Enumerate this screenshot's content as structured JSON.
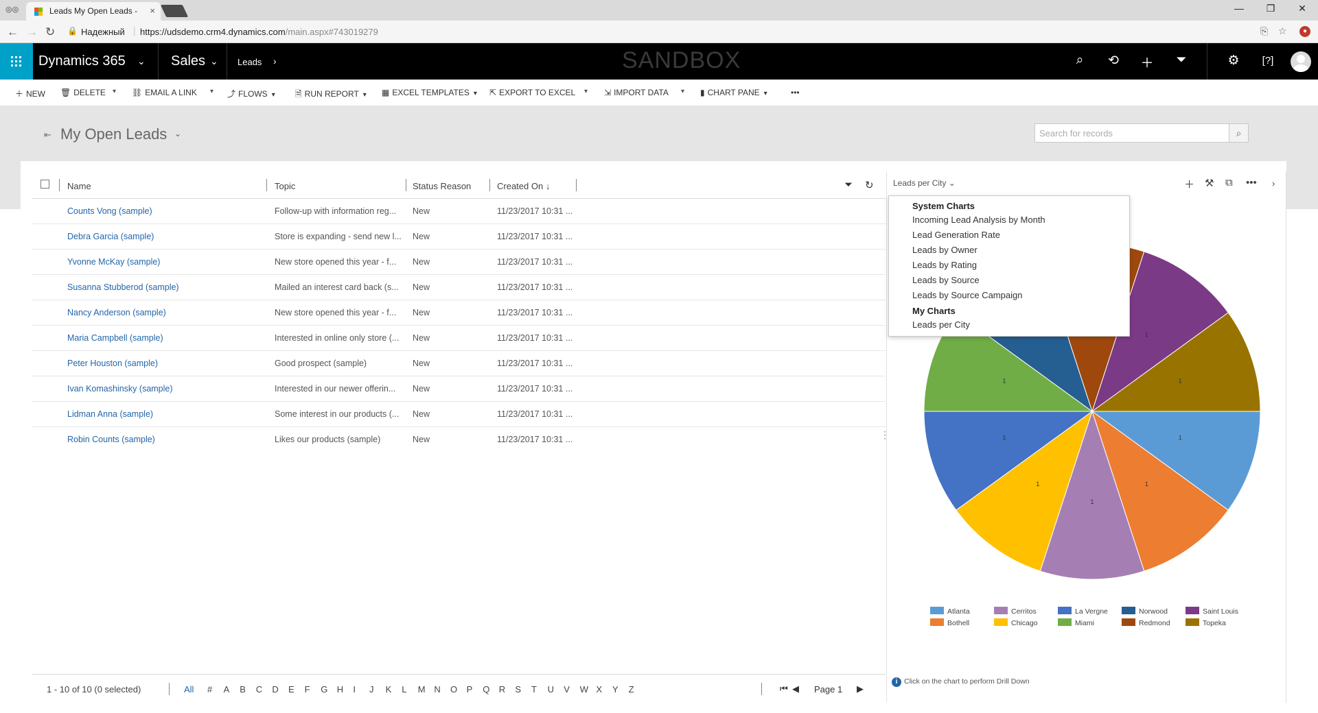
{
  "browser": {
    "tab_title": "Leads My Open Leads - ",
    "tab_close": "×",
    "secure_label": "Надежный",
    "url_host": "https://udsdemo.crm4.dynamics.com",
    "url_path": "/main.aspx#743019279",
    "win_minimize": "—",
    "win_restore": "❐",
    "win_close": "✕"
  },
  "nav": {
    "brand": "Dynamics 365",
    "area": "Sales",
    "entity": "Leads",
    "sandbox": "SANDBOX"
  },
  "commands": {
    "new": "NEW",
    "delete": "DELETE",
    "email_link": "EMAIL A LINK",
    "flows": "FLOWS",
    "run_report": "RUN REPORT",
    "excel_templates": "EXCEL TEMPLATES",
    "export_excel": "EXPORT TO EXCEL",
    "import_data": "IMPORT DATA",
    "chart_pane": "CHART PANE",
    "more": "•••"
  },
  "view": {
    "title": "My Open Leads",
    "search_placeholder": "Search for records"
  },
  "grid": {
    "columns": {
      "name": "Name",
      "topic": "Topic",
      "status": "Status Reason",
      "created": "Created On ↓"
    },
    "rows": [
      {
        "name": "Counts Vong (sample)",
        "topic": "Follow-up with information reg...",
        "status": "New",
        "created": "11/23/2017 10:31 ..."
      },
      {
        "name": "Debra Garcia (sample)",
        "topic": "Store is expanding - send new l...",
        "status": "New",
        "created": "11/23/2017 10:31 ..."
      },
      {
        "name": "Yvonne McKay (sample)",
        "topic": "New store opened this year - f...",
        "status": "New",
        "created": "11/23/2017 10:31 ..."
      },
      {
        "name": "Susanna Stubberod (sample)",
        "topic": "Mailed an interest card back (s...",
        "status": "New",
        "created": "11/23/2017 10:31 ..."
      },
      {
        "name": "Nancy Anderson (sample)",
        "topic": "New store opened this year - f...",
        "status": "New",
        "created": "11/23/2017 10:31 ..."
      },
      {
        "name": "Maria Campbell (sample)",
        "topic": "Interested in online only store (...",
        "status": "New",
        "created": "11/23/2017 10:31 ..."
      },
      {
        "name": "Peter Houston (sample)",
        "topic": "Good prospect (sample)",
        "status": "New",
        "created": "11/23/2017 10:31 ..."
      },
      {
        "name": "Ivan Komashinsky (sample)",
        "topic": "Interested in our newer offerin...",
        "status": "New",
        "created": "11/23/2017 10:31 ..."
      },
      {
        "name": "Lidman Anna (sample)",
        "topic": "Some interest in our products (...",
        "status": "New",
        "created": "11/23/2017 10:31 ..."
      },
      {
        "name": "Robin Counts (sample)",
        "topic": "Likes our products (sample)",
        "status": "New",
        "created": "11/23/2017 10:31 ..."
      }
    ],
    "footer": {
      "count": "1 - 10 of 10 (0 selected)",
      "letters": [
        "All",
        "#",
        "A",
        "B",
        "C",
        "D",
        "E",
        "F",
        "G",
        "H",
        "I",
        "J",
        "K",
        "L",
        "M",
        "N",
        "O",
        "P",
        "Q",
        "R",
        "S",
        "T",
        "U",
        "V",
        "W",
        "X",
        "Y",
        "Z"
      ],
      "page": "Page 1"
    }
  },
  "chart": {
    "selector_label": "Leads per City",
    "dropdown": {
      "system_header": "System Charts",
      "system_items": [
        "Incoming Lead Analysis by Month",
        "Lead Generation Rate",
        "Leads by Owner",
        "Leads by Rating",
        "Leads by Source",
        "Leads by Source Campaign"
      ],
      "my_header": "My Charts",
      "my_items": [
        "Leads per City"
      ]
    },
    "drill_hint": "Click on the chart to perform Drill Down"
  },
  "chart_data": {
    "type": "pie",
    "title": "Leads per City",
    "slices": [
      {
        "label": "Atlanta",
        "value": 1,
        "color": "#5b9bd5"
      },
      {
        "label": "Bothell",
        "value": 1,
        "color": "#ed7d31"
      },
      {
        "label": "Cerritos",
        "value": 1,
        "color": "#a57fb4"
      },
      {
        "label": "Chicago",
        "value": 1,
        "color": "#ffc000"
      },
      {
        "label": "La Vergne",
        "value": 1,
        "color": "#4472c4"
      },
      {
        "label": "Miami",
        "value": 1,
        "color": "#70ad47"
      },
      {
        "label": "Norwood",
        "value": 1,
        "color": "#255e91"
      },
      {
        "label": "Redmond",
        "value": 1,
        "color": "#9e480e"
      },
      {
        "label": "Saint Louis",
        "value": 1,
        "color": "#7b3a86"
      },
      {
        "label": "Topeka",
        "value": 1,
        "color": "#997300"
      }
    ],
    "legend_placement": "bottom"
  }
}
